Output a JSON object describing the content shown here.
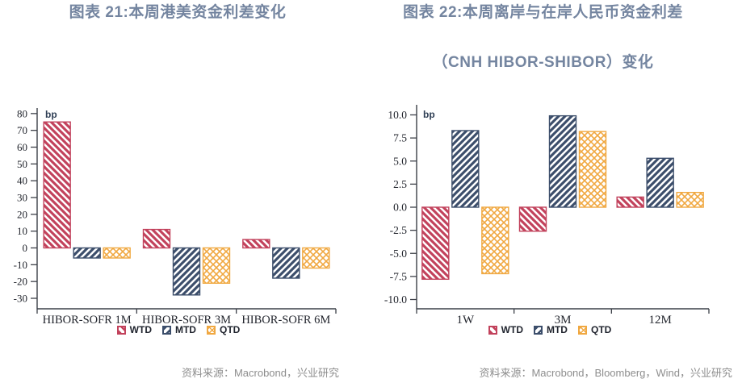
{
  "colors": {
    "title": "#7485A0",
    "source_text": "#8E8E8E",
    "axis": "#3C4048",
    "tick_text": "#23262E",
    "background": "#FFFFFF",
    "wtd": "#C2425C",
    "mtd": "#3C4E6B",
    "qtd": "#F0A841"
  },
  "chart_data": [
    {
      "type": "bar",
      "title": "图表 21:本周港美资金利差变化",
      "title_lines": [
        "图表 21:本周港美资金利差变化"
      ],
      "source": "资料来源：Macrobond，兴业研究",
      "ylabel": "bp",
      "ylim": [
        -30,
        80
      ],
      "grid": false,
      "legend_position": "bottom",
      "categories": [
        "HIBOR-SOFR 1M",
        "HIBOR-SOFR 3M",
        "HIBOR-SOFR 6M"
      ],
      "yticks": {
        "values": [
          80,
          70,
          60,
          50,
          40,
          30,
          20,
          10,
          0,
          -10,
          -20,
          -30
        ],
        "labels": [
          "80",
          "70",
          "60",
          "50",
          "40",
          "30",
          "20",
          "10",
          "0",
          "-10",
          "-20",
          "-30"
        ]
      },
      "series": [
        {
          "name": "WTD",
          "values": [
            75,
            11,
            5
          ],
          "color": "#C2425C",
          "hatch": "backslash"
        },
        {
          "name": "MTD",
          "values": [
            -6,
            -28,
            -18
          ],
          "color": "#3C4E6B",
          "hatch": "slash"
        },
        {
          "name": "QTD",
          "values": [
            -6,
            -21,
            -12
          ],
          "color": "#F0A841",
          "hatch": "crosshatch"
        }
      ]
    },
    {
      "type": "bar",
      "title": "图表 22:本周离岸与在岸人民币资金利差（CNH HIBOR-SHIBOR）变化",
      "title_lines": [
        "图表 22:本周离岸与在岸人民币资金利差",
        "（CNH HIBOR-SHIBOR）变化"
      ],
      "source": "资料来源：Macrobond，Bloomberg，Wind，兴业研究",
      "ylabel": "bp",
      "ylim": [
        -10,
        10
      ],
      "grid": false,
      "legend_position": "bottom",
      "categories": [
        "1W",
        "3M",
        "12M"
      ],
      "yticks": {
        "values": [
          10,
          7.5,
          5,
          2.5,
          0,
          -2.5,
          -5,
          -7.5,
          -10
        ],
        "labels": [
          "10.0",
          "7.5",
          "5.0",
          "2.5",
          "0.0",
          "-2.5",
          "-5.0",
          "-7.5",
          "-10.0"
        ]
      },
      "series": [
        {
          "name": "WTD",
          "values": [
            -7.8,
            -2.6,
            1.1
          ],
          "color": "#C2425C",
          "hatch": "backslash"
        },
        {
          "name": "MTD",
          "values": [
            8.3,
            9.9,
            5.3
          ],
          "color": "#3C4E6B",
          "hatch": "slash"
        },
        {
          "name": "QTD",
          "values": [
            -7.2,
            8.2,
            1.6
          ],
          "color": "#F0A841",
          "hatch": "crosshatch"
        }
      ]
    }
  ]
}
